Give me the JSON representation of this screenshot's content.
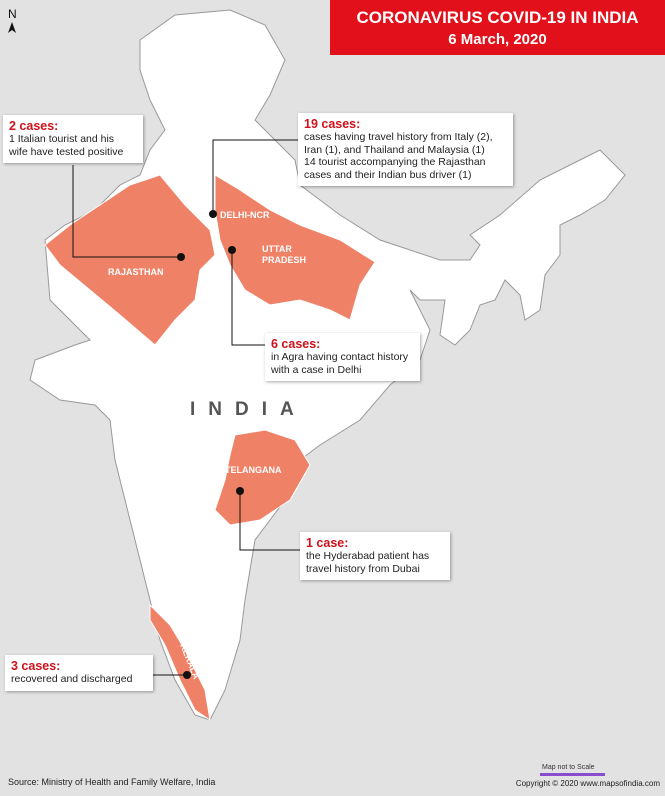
{
  "header": {
    "title": "CORONAVIRUS COVID-19 IN INDIA",
    "date": "6 March, 2020"
  },
  "north": "N",
  "country": "INDIA",
  "regions": {
    "rajasthan": "RAJASTHAN",
    "delhi": "DELHI-NCR",
    "up": [
      "UTTAR",
      "PRADESH"
    ],
    "telangana": "TELANGANA",
    "kerala": "KERALA"
  },
  "callouts": [
    {
      "heading": "2 cases:",
      "lines": [
        "1 Italian tourist and his",
        "wife have tested positive"
      ]
    },
    {
      "heading": "19 cases:",
      "lines": [
        "cases having travel history from Italy (2),",
        "Iran (1), and Thailand and Malaysia (1)",
        "14 tourist accompanying the Rajasthan",
        "cases and their Indian bus driver (1)"
      ]
    },
    {
      "heading": "6 cases:",
      "lines": [
        "in Agra having contact history",
        "with a case in Delhi"
      ]
    },
    {
      "heading": "1 case:",
      "lines": [
        "the Hyderabad patient has",
        "travel history from Dubai"
      ]
    },
    {
      "heading": "3 cases:",
      "lines": [
        "recovered and discharged"
      ]
    }
  ],
  "footer": {
    "source": "Source: Ministry of Health and Family Welfare, India",
    "scale_note": "Map not to Scale",
    "copyright": "Copyright © 2020 www.mapsofindia.com"
  }
}
